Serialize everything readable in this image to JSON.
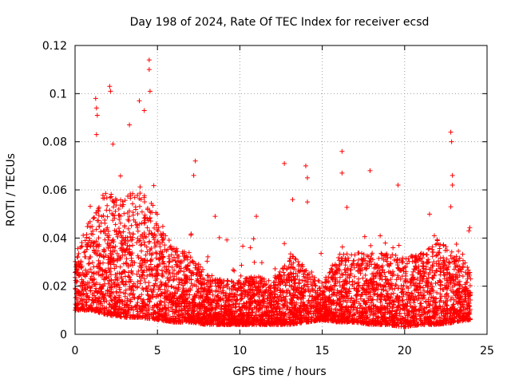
{
  "chart_data": {
    "type": "scatter",
    "title": "Day 198 of 2024, Rate Of TEC Index for receiver ecsd",
    "xlabel": "GPS time / hours",
    "ylabel": "ROTI / TECUs",
    "xlim": [
      0,
      25
    ],
    "ylim": [
      0,
      0.12
    ],
    "x_ticks": [
      "0",
      "5",
      "10",
      "15",
      "20",
      "25"
    ],
    "y_ticks": [
      "0",
      "0.02",
      "0.04",
      "0.06",
      "0.08",
      "0.1",
      "0.12"
    ],
    "grid": true,
    "marker": "plus",
    "color": "#ff0000",
    "x_range_of_data": [
      0,
      24
    ],
    "notable_points": [
      {
        "x": 4.5,
        "y": 0.114
      },
      {
        "x": 4.5,
        "y": 0.11
      },
      {
        "x": 2.1,
        "y": 0.103
      },
      {
        "x": 2.15,
        "y": 0.101
      },
      {
        "x": 4.55,
        "y": 0.101
      },
      {
        "x": 1.25,
        "y": 0.098
      },
      {
        "x": 3.9,
        "y": 0.097
      },
      {
        "x": 1.3,
        "y": 0.094
      },
      {
        "x": 1.35,
        "y": 0.091
      },
      {
        "x": 4.2,
        "y": 0.093
      },
      {
        "x": 3.3,
        "y": 0.087
      },
      {
        "x": 1.3,
        "y": 0.083
      },
      {
        "x": 22.8,
        "y": 0.084
      },
      {
        "x": 22.85,
        "y": 0.08
      },
      {
        "x": 2.3,
        "y": 0.079
      },
      {
        "x": 16.2,
        "y": 0.076
      },
      {
        "x": 7.3,
        "y": 0.072
      },
      {
        "x": 12.7,
        "y": 0.071
      },
      {
        "x": 14.0,
        "y": 0.07
      },
      {
        "x": 17.9,
        "y": 0.068
      },
      {
        "x": 16.2,
        "y": 0.067
      },
      {
        "x": 22.9,
        "y": 0.066
      },
      {
        "x": 7.2,
        "y": 0.066
      },
      {
        "x": 14.1,
        "y": 0.065
      },
      {
        "x": 22.9,
        "y": 0.062
      },
      {
        "x": 19.6,
        "y": 0.062
      },
      {
        "x": 13.2,
        "y": 0.056
      },
      {
        "x": 14.1,
        "y": 0.055
      },
      {
        "x": 22.8,
        "y": 0.053
      },
      {
        "x": 8.5,
        "y": 0.049
      },
      {
        "x": 11.0,
        "y": 0.049
      },
      {
        "x": 21.8,
        "y": 0.041
      },
      {
        "x": 23.9,
        "y": 0.043
      }
    ],
    "envelope": {
      "description_hours": [
        0,
        1,
        2,
        3,
        4,
        5,
        6,
        7,
        8,
        9,
        10,
        11,
        12,
        13,
        14,
        15,
        16,
        17,
        18,
        19,
        20,
        21,
        22,
        23,
        24
      ],
      "typical_low": [
        0.01,
        0.01,
        0.008,
        0.007,
        0.007,
        0.006,
        0.005,
        0.005,
        0.004,
        0.004,
        0.004,
        0.004,
        0.004,
        0.004,
        0.005,
        0.006,
        0.005,
        0.005,
        0.004,
        0.004,
        0.003,
        0.004,
        0.004,
        0.005,
        0.006
      ],
      "typical_high": [
        0.03,
        0.045,
        0.055,
        0.05,
        0.055,
        0.045,
        0.032,
        0.03,
        0.022,
        0.02,
        0.02,
        0.022,
        0.02,
        0.03,
        0.025,
        0.02,
        0.03,
        0.03,
        0.03,
        0.03,
        0.028,
        0.03,
        0.035,
        0.03,
        0.025
      ]
    }
  }
}
